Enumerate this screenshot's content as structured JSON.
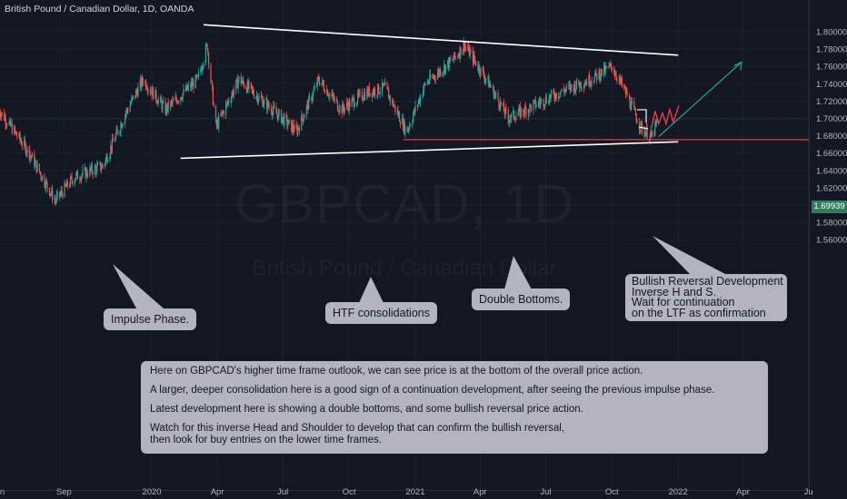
{
  "header": {
    "title": "British Pound / Canadian Dollar, 1D, OANDA"
  },
  "watermark": {
    "symbol": "GBPCAD, 1D",
    "name": "British Pound / Canadian Dollar"
  },
  "colors": {
    "background": "#131722",
    "up": "#26a69a",
    "down": "#ef5350",
    "callout": "#b2b5be",
    "support": "#f23645",
    "price_badge": "#2e7d5b",
    "arrow": "#26a69a"
  },
  "callouts": {
    "impulse": "Impulse Phase.",
    "htf": "HTF consolidations",
    "double_bottoms": "Double Bottoms.",
    "bullish_lines": [
      "Bullish Reversal Development",
      "Inverse H and S.",
      "Wait for continuation",
      "on the LTF as confirmation"
    ]
  },
  "note": {
    "lines": [
      "Here on GBPCAD's higher time frame outlook, we can see price is at the bottom of the overall price action.",
      "A larger, deeper consolidation here is a good sign of a continuation development, after seeing the previous impulse phase.",
      "Latest development here is showing a double bottoms, and some bullish reversal price action.",
      "Watch for this inverse Head and Shoulder to develop that can confirm the bullish reversal,",
      "then look for buy entries on the lower time frames."
    ]
  },
  "chart_data": {
    "type": "candlestick",
    "title": "British Pound / Canadian Dollar, 1D, OANDA",
    "x_ticks": [
      "Jun",
      "Sep",
      "2020",
      "Apr",
      "Jul",
      "Oct",
      "2021",
      "Apr",
      "Jul",
      "Oct",
      "2022",
      "Apr",
      "Ju"
    ],
    "y_ticks": [
      "1.80000",
      "1.78000",
      "1.76000",
      "1.74000",
      "1.72000",
      "1.70000",
      "1.68000",
      "1.66000",
      "1.64000",
      "1.62000",
      "1.60000",
      "1.58000",
      "1.56000"
    ],
    "ylim": [
      1.55,
      1.81
    ],
    "last_price": "1.69939",
    "price_path": [
      {
        "x": "2019-06-01",
        "y": 1.712
      },
      {
        "x": "2019-07-15",
        "y": 1.66
      },
      {
        "x": "2019-08-20",
        "y": 1.605
      },
      {
        "x": "2019-09-15",
        "y": 1.632
      },
      {
        "x": "2019-10-25",
        "y": 1.645
      },
      {
        "x": "2019-11-25",
        "y": 1.705
      },
      {
        "x": "2019-12-20",
        "y": 1.745
      },
      {
        "x": "2020-01-20",
        "y": 1.71
      },
      {
        "x": "2020-03-05",
        "y": 1.745
      },
      {
        "x": "2020-03-18",
        "y": 1.785
      },
      {
        "x": "2020-03-30",
        "y": 1.69
      },
      {
        "x": "2020-05-01",
        "y": 1.745
      },
      {
        "x": "2020-06-10",
        "y": 1.715
      },
      {
        "x": "2020-07-20",
        "y": 1.685
      },
      {
        "x": "2020-08-20",
        "y": 1.745
      },
      {
        "x": "2020-09-20",
        "y": 1.71
      },
      {
        "x": "2020-10-25",
        "y": 1.73
      },
      {
        "x": "2020-11-20",
        "y": 1.735
      },
      {
        "x": "2020-12-20",
        "y": 1.685
      },
      {
        "x": "2021-01-15",
        "y": 1.74
      },
      {
        "x": "2021-02-25",
        "y": 1.77
      },
      {
        "x": "2021-03-10",
        "y": 1.785
      },
      {
        "x": "2021-04-10",
        "y": 1.745
      },
      {
        "x": "2021-05-10",
        "y": 1.7
      },
      {
        "x": "2021-06-15",
        "y": 1.715
      },
      {
        "x": "2021-07-20",
        "y": 1.73
      },
      {
        "x": "2021-09-01",
        "y": 1.745
      },
      {
        "x": "2021-10-01",
        "y": 1.76
      },
      {
        "x": "2021-10-20",
        "y": 1.73
      },
      {
        "x": "2021-11-10",
        "y": 1.69
      },
      {
        "x": "2021-11-25",
        "y": 1.678
      },
      {
        "x": "2021-12-05",
        "y": 1.7
      }
    ],
    "drawings": {
      "upper_trendline": [
        {
          "x": "2020-03-13",
          "y": 1.808
        },
        {
          "x": "2022-01-01",
          "y": 1.773
        }
      ],
      "lower_trendline": [
        {
          "x": "2020-02-10",
          "y": 1.654
        },
        {
          "x": "2022-01-01",
          "y": 1.673
        }
      ],
      "support_level": 1.6755,
      "projection_arrow": [
        {
          "x": "2021-12-05",
          "y": 1.679
        },
        {
          "x": "2022-03-30",
          "y": 1.765
        }
      ]
    }
  }
}
